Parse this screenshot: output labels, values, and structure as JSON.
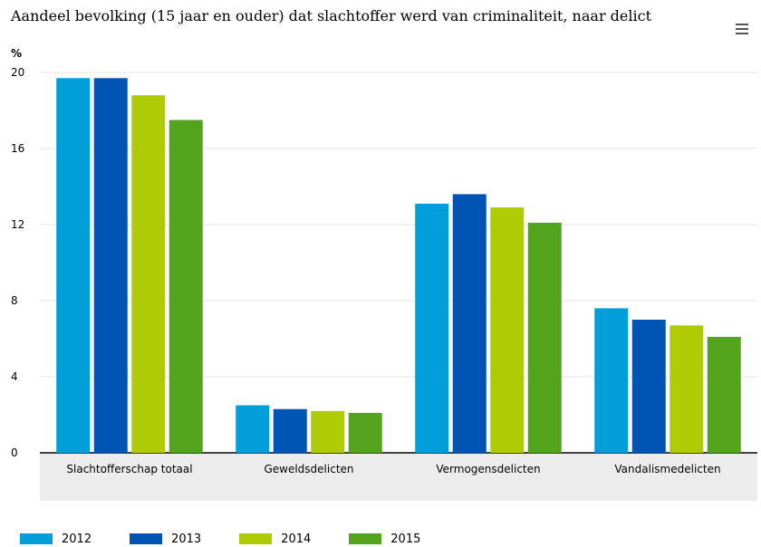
{
  "title": "Aandeel bevolking (15 jaar en ouder) dat slachtoffer werd van criminaliteit, naar delict",
  "menu_icon": "hamburger-menu-icon",
  "colors": {
    "series": [
      "#009fd9",
      "#0054b4",
      "#afcb05",
      "#53a31d"
    ],
    "grid": "#e6e6e6",
    "category_band": "#ececec",
    "axis": "#000000"
  },
  "chart_data": {
    "type": "bar",
    "ylabel": "%",
    "ylim": [
      0,
      20
    ],
    "yticks": [
      0,
      4,
      8,
      12,
      16,
      20
    ],
    "categories": [
      "Slachtofferschap totaal",
      "Geweldsdelicten",
      "Vermogensdelicten",
      "Vandalismedelicten"
    ],
    "series": [
      {
        "name": "2012",
        "values": [
          19.7,
          2.5,
          13.1,
          7.6
        ]
      },
      {
        "name": "2013",
        "values": [
          19.7,
          2.3,
          13.6,
          7.0
        ]
      },
      {
        "name": "2014",
        "values": [
          18.8,
          2.2,
          12.9,
          6.7
        ]
      },
      {
        "name": "2015",
        "values": [
          17.5,
          2.1,
          12.1,
          6.1
        ]
      }
    ],
    "legend": "bottom-left",
    "grid": true
  }
}
